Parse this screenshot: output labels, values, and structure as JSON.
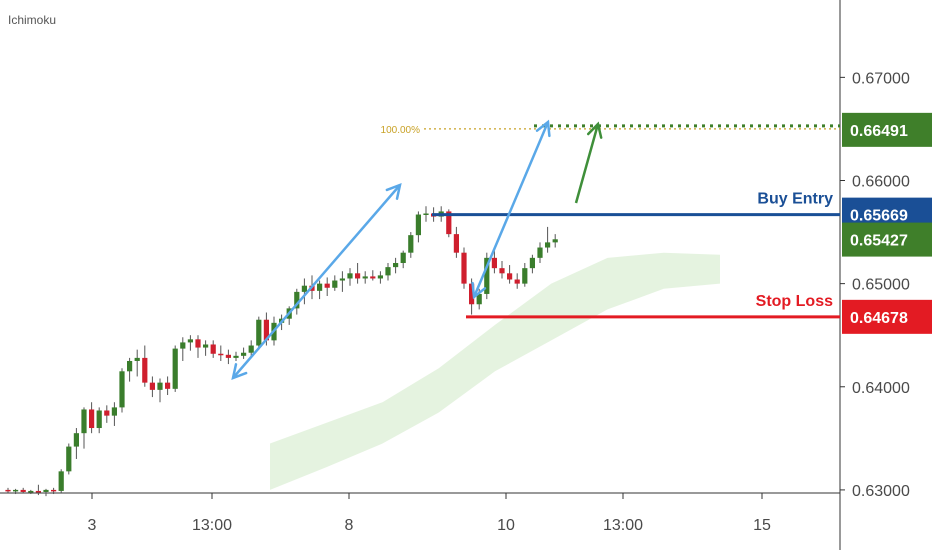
{
  "indicator_label": "Ichimoku",
  "colors": {
    "up": "#3a7d2c",
    "down": "#cf1f2e",
    "wick": "#555555",
    "cloud": "#dcefd6",
    "blue_line": "#1a4f96",
    "red_line": "#e31b23",
    "green_badge": "#3f7f2a",
    "blue_badge": "#1a4f96",
    "red_badge": "#e31b23",
    "fib": "#c9a227",
    "fib_green": "#3f7f2a",
    "arrow_blue": "#5aa8e8",
    "arrow_green": "#3f8f3a"
  },
  "chart_data": {
    "type": "candlestick",
    "ylim": [
      0.6297,
      0.6775
    ],
    "x_ticks": [
      "3",
      "13:00",
      "8",
      "10",
      "13:00",
      "15"
    ],
    "y_ticks": [
      "0.67000",
      "0.66000",
      "0.65000",
      "0.64000",
      "0.63000"
    ],
    "y_tick_values": [
      0.67,
      0.66,
      0.65,
      0.64,
      0.63
    ],
    "levels": [
      {
        "name": "buy_entry",
        "label": "Buy Entry",
        "value": 0.65669,
        "badge": "0.65669"
      },
      {
        "name": "stop_loss",
        "label": "Stop Loss",
        "value": 0.64678,
        "badge": "0.64678"
      },
      {
        "name": "target",
        "label": "100.00%",
        "value": 0.66491,
        "badge": "0.66491"
      }
    ],
    "current_price": {
      "value": 0.65427,
      "badge": "0.65427"
    },
    "candles": [
      [
        0.63,
        0.6302,
        0.6297,
        0.6299
      ],
      [
        0.6299,
        0.6301,
        0.6296,
        0.63
      ],
      [
        0.63,
        0.6302,
        0.6297,
        0.6298
      ],
      [
        0.6298,
        0.63,
        0.6296,
        0.6299
      ],
      [
        0.6299,
        0.6305,
        0.6295,
        0.6298
      ],
      [
        0.6298,
        0.6301,
        0.6294,
        0.63
      ],
      [
        0.63,
        0.6302,
        0.6296,
        0.6299
      ],
      [
        0.6299,
        0.632,
        0.6297,
        0.6318
      ],
      [
        0.6318,
        0.6345,
        0.6315,
        0.6342
      ],
      [
        0.6342,
        0.636,
        0.633,
        0.6355
      ],
      [
        0.6355,
        0.638,
        0.634,
        0.6378
      ],
      [
        0.6378,
        0.6385,
        0.6355,
        0.636
      ],
      [
        0.636,
        0.638,
        0.6355,
        0.6377
      ],
      [
        0.6377,
        0.6382,
        0.6365,
        0.6372
      ],
      [
        0.6372,
        0.6385,
        0.6362,
        0.638
      ],
      [
        0.638,
        0.6418,
        0.6375,
        0.6415
      ],
      [
        0.6415,
        0.6428,
        0.6405,
        0.6425
      ],
      [
        0.6425,
        0.6436,
        0.641,
        0.6428
      ],
      [
        0.6428,
        0.644,
        0.64,
        0.6404
      ],
      [
        0.6404,
        0.641,
        0.639,
        0.6397
      ],
      [
        0.6397,
        0.6408,
        0.6385,
        0.6404
      ],
      [
        0.6404,
        0.641,
        0.6392,
        0.6398
      ],
      [
        0.6398,
        0.644,
        0.6395,
        0.6437
      ],
      [
        0.6437,
        0.6448,
        0.6425,
        0.6443
      ],
      [
        0.6443,
        0.645,
        0.6435,
        0.6446
      ],
      [
        0.6446,
        0.645,
        0.6428,
        0.6438
      ],
      [
        0.6438,
        0.6445,
        0.643,
        0.6441
      ],
      [
        0.6441,
        0.6445,
        0.6428,
        0.6432
      ],
      [
        0.6432,
        0.644,
        0.6425,
        0.6431
      ],
      [
        0.6431,
        0.6436,
        0.6422,
        0.6428
      ],
      [
        0.6428,
        0.6434,
        0.6425,
        0.643
      ],
      [
        0.643,
        0.6438,
        0.6427,
        0.6433
      ],
      [
        0.6433,
        0.6445,
        0.643,
        0.644
      ],
      [
        0.644,
        0.6468,
        0.6436,
        0.6465
      ],
      [
        0.6465,
        0.6472,
        0.644,
        0.6445
      ],
      [
        0.6445,
        0.6468,
        0.644,
        0.6462
      ],
      [
        0.6462,
        0.647,
        0.6455,
        0.6466
      ],
      [
        0.6466,
        0.6478,
        0.646,
        0.6476
      ],
      [
        0.6476,
        0.6495,
        0.647,
        0.6492
      ],
      [
        0.6492,
        0.6505,
        0.648,
        0.6498
      ],
      [
        0.6498,
        0.6508,
        0.6485,
        0.6493
      ],
      [
        0.6493,
        0.6503,
        0.6485,
        0.65
      ],
      [
        0.65,
        0.6506,
        0.6488,
        0.6496
      ],
      [
        0.6496,
        0.6508,
        0.6493,
        0.6503
      ],
      [
        0.6503,
        0.6512,
        0.6492,
        0.6505
      ],
      [
        0.6505,
        0.6515,
        0.6498,
        0.651
      ],
      [
        0.651,
        0.652,
        0.65,
        0.6505
      ],
      [
        0.6505,
        0.6512,
        0.65,
        0.6507
      ],
      [
        0.6507,
        0.6513,
        0.6503,
        0.6505
      ],
      [
        0.6505,
        0.6512,
        0.65,
        0.6508
      ],
      [
        0.6508,
        0.652,
        0.6503,
        0.6516
      ],
      [
        0.6516,
        0.6525,
        0.651,
        0.652
      ],
      [
        0.652,
        0.6532,
        0.6515,
        0.653
      ],
      [
        0.653,
        0.655,
        0.6525,
        0.6547
      ],
      [
        0.6547,
        0.657,
        0.654,
        0.6567
      ],
      [
        0.6567,
        0.6575,
        0.656,
        0.6568
      ],
      [
        0.6568,
        0.6574,
        0.656,
        0.6565
      ],
      [
        0.6565,
        0.6575,
        0.656,
        0.657
      ],
      [
        0.657,
        0.6572,
        0.6545,
        0.6548
      ],
      [
        0.6548,
        0.6555,
        0.6525,
        0.653
      ],
      [
        0.653,
        0.6535,
        0.6495,
        0.65
      ],
      [
        0.65,
        0.6505,
        0.647,
        0.648
      ],
      [
        0.648,
        0.6495,
        0.6475,
        0.649
      ],
      [
        0.649,
        0.653,
        0.6485,
        0.6525
      ],
      [
        0.6525,
        0.6532,
        0.651,
        0.6515
      ],
      [
        0.6515,
        0.6522,
        0.6505,
        0.651
      ],
      [
        0.651,
        0.6518,
        0.65,
        0.6504
      ],
      [
        0.6504,
        0.651,
        0.6495,
        0.65
      ],
      [
        0.65,
        0.652,
        0.6497,
        0.6515
      ],
      [
        0.6515,
        0.6528,
        0.651,
        0.6525
      ],
      [
        0.6525,
        0.654,
        0.652,
        0.6535
      ],
      [
        0.6535,
        0.6555,
        0.653,
        0.654
      ],
      [
        0.654,
        0.6548,
        0.6535,
        0.6543
      ]
    ],
    "cloud_a": [
      [
        0.63,
        0.6345
      ],
      [
        0.6322,
        0.6365
      ],
      [
        0.6345,
        0.6385
      ],
      [
        0.6375,
        0.6418
      ],
      [
        0.6415,
        0.646
      ],
      [
        0.6445,
        0.65
      ],
      [
        0.6475,
        0.6525
      ],
      [
        0.6495,
        0.653
      ],
      [
        0.65,
        0.6528
      ]
    ],
    "annotations": {
      "arrows": [
        {
          "color": "arrow_blue",
          "points": [
            [
              0.644,
              0.6407
            ],
            [
              0.6574,
              0.6577
            ]
          ],
          "double": true
        },
        {
          "color": "arrow_blue",
          "points": [
            [
              0.6473,
              0.6478
            ],
            [
              0.6638,
              0.6642
            ]
          ],
          "double": true
        },
        {
          "color": "arrow_green",
          "points": [
            [
              0.6568,
              0.664
            ]
          ],
          "double": false
        }
      ]
    }
  }
}
